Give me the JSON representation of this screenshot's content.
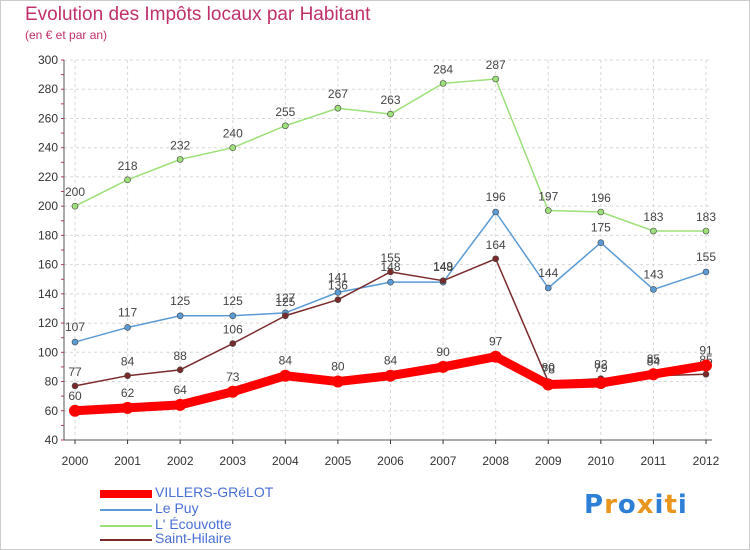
{
  "chart_data": {
    "type": "line",
    "title": "Evolution des Impôts locaux par Habitant",
    "subtitle": "(en € et par an)",
    "x": [
      "2000",
      "2001",
      "2002",
      "2003",
      "2004",
      "2005",
      "2006",
      "2007",
      "2008",
      "2009",
      "2010",
      "2011",
      "2012"
    ],
    "ylim": [
      40,
      300
    ],
    "yticks": [
      40,
      60,
      80,
      100,
      120,
      140,
      160,
      180,
      200,
      220,
      240,
      260,
      280,
      300
    ],
    "grid": true,
    "legend_position": "bottom-left",
    "series": [
      {
        "name": "VILLERS-GRéLOT",
        "color": "#ff0000",
        "values": [
          60,
          62,
          64,
          73,
          84,
          80,
          84,
          90,
          97,
          78,
          79,
          85,
          91
        ]
      },
      {
        "name": "Le Puy",
        "color": "#5b9bd5",
        "values": [
          107,
          117,
          125,
          125,
          127,
          141,
          148,
          148,
          196,
          144,
          175,
          143,
          155
        ]
      },
      {
        "name": "L' Écouvotte",
        "color": "#9de07a",
        "values": [
          200,
          218,
          232,
          240,
          255,
          267,
          263,
          284,
          287,
          197,
          196,
          183,
          183
        ]
      },
      {
        "name": "Saint-Hilaire",
        "color": "#7a2a2a",
        "values": [
          77,
          84,
          88,
          106,
          125,
          136,
          155,
          149,
          164,
          80,
          82,
          84,
          85
        ]
      }
    ]
  },
  "logo": {
    "letters": [
      "P",
      "r",
      "o",
      "x",
      "i",
      "t",
      "i"
    ],
    "colors": [
      "#2e7fd6",
      "#e8961e",
      "#2e7fd6",
      "#e8961e",
      "#2e7fd6",
      "#e8961e",
      "#2e7fd6"
    ]
  }
}
